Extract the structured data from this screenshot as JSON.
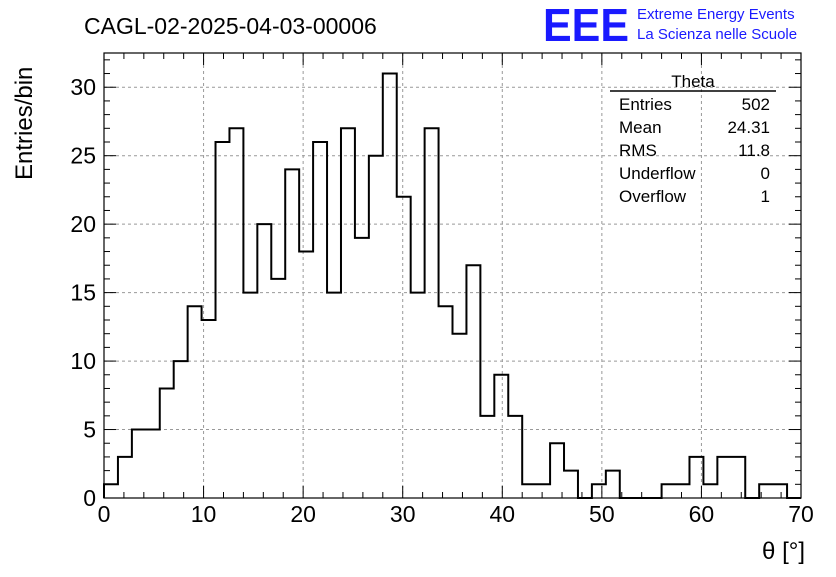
{
  "title": "CAGL-02-2025-04-03-00006",
  "logo": {
    "text": "EEE",
    "line1": "Extreme Energy Events",
    "line2": "La Scienza nelle Scuole",
    "color": "#1a1aff"
  },
  "stats": {
    "name": "Theta",
    "rows": [
      {
        "label": "Entries",
        "value": "502"
      },
      {
        "label": "Mean",
        "value": "24.31"
      },
      {
        "label": "RMS",
        "value": "11.8"
      },
      {
        "label": "Underflow",
        "value": "0"
      },
      {
        "label": "Overflow",
        "value": "1"
      }
    ]
  },
  "chart_data": {
    "type": "histogram",
    "xlabel": "θ [°]",
    "ylabel": "Entries/bin",
    "xlim": [
      0,
      70
    ],
    "ylim": [
      0,
      32.5
    ],
    "xticks": [
      0,
      10,
      20,
      30,
      40,
      50,
      60,
      70
    ],
    "yticks": [
      0,
      5,
      10,
      15,
      20,
      25,
      30
    ],
    "grid": true,
    "bin_width": 1.4,
    "bin_start": 0,
    "values": [
      1,
      3,
      5,
      5,
      8,
      10,
      14,
      13,
      26,
      27,
      15,
      20,
      16,
      24,
      18,
      26,
      15,
      27,
      19,
      25,
      31,
      22,
      15,
      27,
      14,
      12,
      17,
      6,
      9,
      6,
      1,
      1,
      4,
      2,
      0,
      1,
      2,
      0,
      0,
      0,
      1,
      1,
      3,
      1,
      3,
      3,
      0,
      1,
      1,
      0
    ]
  }
}
